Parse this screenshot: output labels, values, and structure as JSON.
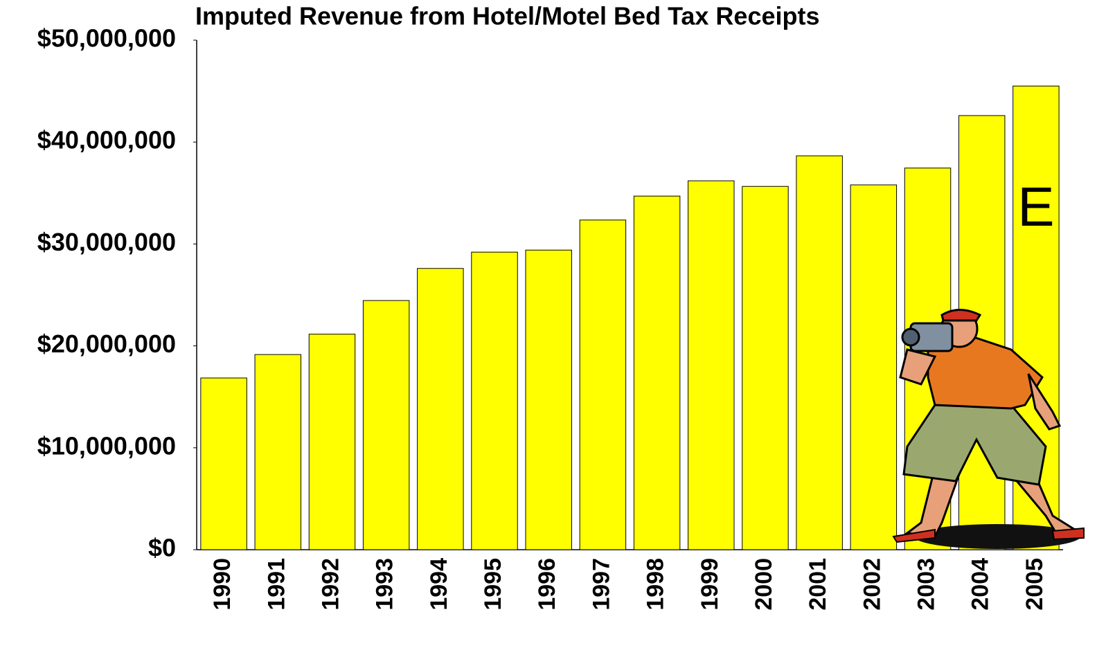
{
  "chart_data": {
    "type": "bar",
    "title": "Imputed Revenue from Hotel/Motel Bed Tax Receipts",
    "categories": [
      "1990",
      "1991",
      "1992",
      "1993",
      "1994",
      "1995",
      "1996",
      "1997",
      "1998",
      "1999",
      "2000",
      "2001",
      "2002",
      "2003",
      "2004",
      "2005"
    ],
    "values": [
      16850000,
      19150000,
      21150000,
      24450000,
      27600000,
      29200000,
      29400000,
      32350000,
      34700000,
      36200000,
      35650000,
      38650000,
      35800000,
      37450000,
      42600000,
      45500000
    ],
    "color": "#ffff00",
    "ylim": [
      0,
      50000000
    ],
    "yticks": [
      {
        "value": 0,
        "label": "$0"
      },
      {
        "value": 10000000,
        "label": "$10,000,000"
      },
      {
        "value": 20000000,
        "label": "$20,000,000"
      },
      {
        "value": 30000000,
        "label": "$30,000,000"
      },
      {
        "value": 40000000,
        "label": "$40,000,000"
      },
      {
        "value": 50000000,
        "label": "$50,000,000"
      }
    ],
    "grid": false,
    "annotation": "E"
  }
}
